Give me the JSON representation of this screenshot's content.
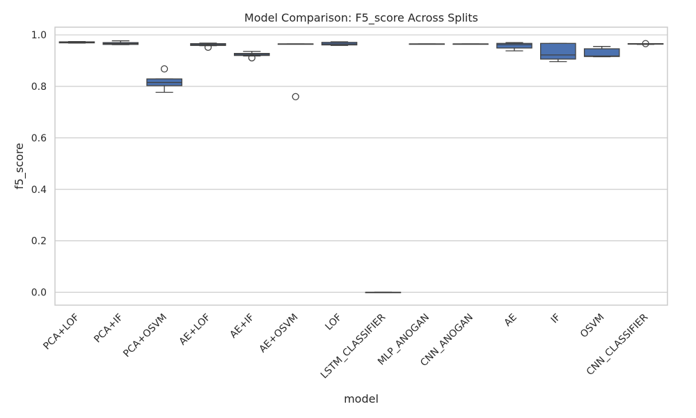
{
  "chart_data": {
    "type": "box",
    "title": "Model Comparison: F5_score Across Splits",
    "xlabel": "model",
    "ylabel": "f5_score",
    "ylim": [
      -0.05,
      1.03
    ],
    "yticks": [
      0.0,
      0.2,
      0.4,
      0.6,
      0.8,
      1.0
    ],
    "ytick_labels": [
      "0.0",
      "0.2",
      "0.4",
      "0.6",
      "0.8",
      "1.0"
    ],
    "grid": true,
    "box_color": "#4c72b0",
    "line_color": "#404040",
    "categories": [
      "PCA+LOF",
      "PCA+IF",
      "PCA+OSVM",
      "AE+LOF",
      "AE+IF",
      "AE+OSVM",
      "LOF",
      "LSTM_CLASSIFIER",
      "MLP_ANOGAN",
      "CNN_ANOGAN",
      "AE",
      "IF",
      "OSVM",
      "CNN_CLASSIFIER"
    ],
    "boxes": [
      {
        "whislo": 0.968,
        "q1": 0.969,
        "med": 0.971,
        "q3": 0.973,
        "whishi": 0.974,
        "fliers": []
      },
      {
        "whislo": 0.962,
        "q1": 0.963,
        "med": 0.966,
        "q3": 0.97,
        "whishi": 0.977,
        "fliers": []
      },
      {
        "whislo": 0.777,
        "q1": 0.803,
        "med": 0.815,
        "q3": 0.829,
        "whishi": 0.829,
        "fliers": [
          0.868
        ]
      },
      {
        "whislo": 0.958,
        "q1": 0.959,
        "med": 0.962,
        "q3": 0.966,
        "whishi": 0.968,
        "fliers": [
          0.952
        ]
      },
      {
        "whislo": 0.918,
        "q1": 0.92,
        "med": 0.924,
        "q3": 0.928,
        "whishi": 0.936,
        "fliers": [
          0.911
        ]
      },
      {
        "whislo": 0.964,
        "q1": 0.964,
        "med": 0.965,
        "q3": 0.965,
        "whishi": 0.965,
        "fliers": [
          0.76
        ]
      },
      {
        "whislo": 0.959,
        "q1": 0.961,
        "med": 0.965,
        "q3": 0.971,
        "whishi": 0.973,
        "fliers": []
      },
      {
        "whislo": 0.0,
        "q1": 0.0,
        "med": 0.0,
        "q3": 0.0,
        "whishi": 0.0,
        "fliers": []
      },
      {
        "whislo": 0.964,
        "q1": 0.964,
        "med": 0.965,
        "q3": 0.965,
        "whishi": 0.965,
        "fliers": []
      },
      {
        "whislo": 0.964,
        "q1": 0.964,
        "med": 0.965,
        "q3": 0.965,
        "whishi": 0.965,
        "fliers": []
      },
      {
        "whislo": 0.938,
        "q1": 0.949,
        "med": 0.962,
        "q3": 0.967,
        "whishi": 0.97,
        "fliers": []
      },
      {
        "whislo": 0.896,
        "q1": 0.906,
        "med": 0.922,
        "q3": 0.967,
        "whishi": 0.967,
        "fliers": []
      },
      {
        "whislo": 0.915,
        "q1": 0.916,
        "med": 0.918,
        "q3": 0.946,
        "whishi": 0.955,
        "fliers": []
      },
      {
        "whislo": 0.963,
        "q1": 0.964,
        "med": 0.965,
        "q3": 0.966,
        "whishi": 0.966,
        "fliers": [
          0.966
        ]
      }
    ]
  }
}
